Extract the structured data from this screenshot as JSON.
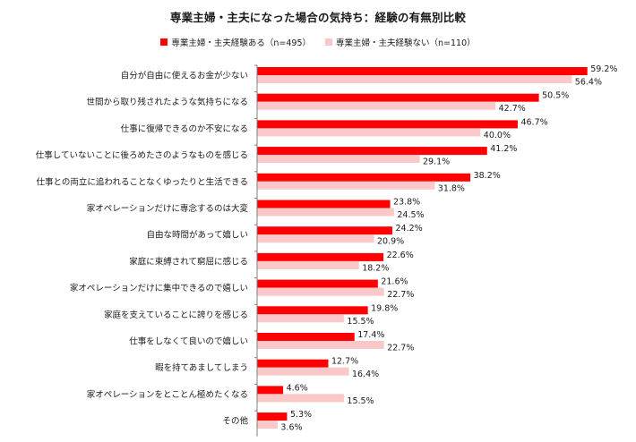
{
  "colors": {
    "experienced": "#ff0000",
    "not_experienced": "#fac8c8",
    "axis": "#7f7f7f",
    "text": "#1a1a1a"
  },
  "chart_data": {
    "type": "bar",
    "orientation": "horizontal",
    "title": "専業主婦・主夫になった場合の気持ち：経験の有無別比較",
    "legend_position": "top",
    "grid": false,
    "xlim": [
      0,
      70
    ],
    "value_suffix": "%",
    "categories": [
      "自分が自由に使えるお金が少ない",
      "世間から取り残されたような気持ちになる",
      "仕事に復帰できるのか不安になる",
      "仕事していないことに後ろめたさのようなものを感じる",
      "仕事との両立に追われることなくゆったりと生活できる",
      "家オペレーションだけに専念するのは大変",
      "自由な時間があって嬉しい",
      "家庭に束縛されて窮屈に感じる",
      "家オペレーションだけに集中できるので嬉しい",
      "家庭を支えていることに誇りを感じる",
      "仕事をしなくて良いので嬉しい",
      "暇を持てあましてしまう",
      "家オペレーションをとことん極めたくなる",
      "その他"
    ],
    "series": [
      {
        "name": "専業主婦・主夫経験ある（n=495）",
        "color": "#ff0000",
        "values": [
          59.2,
          50.5,
          46.7,
          41.2,
          38.2,
          23.8,
          24.2,
          22.6,
          21.6,
          19.8,
          17.4,
          12.7,
          4.6,
          5.3
        ]
      },
      {
        "name": "専業主婦・主夫経験ない（n=110）",
        "color": "#fac8c8",
        "values": [
          56.4,
          42.7,
          40.0,
          29.1,
          31.8,
          24.5,
          20.9,
          18.2,
          22.7,
          15.5,
          22.7,
          16.4,
          15.5,
          3.6
        ]
      }
    ]
  }
}
